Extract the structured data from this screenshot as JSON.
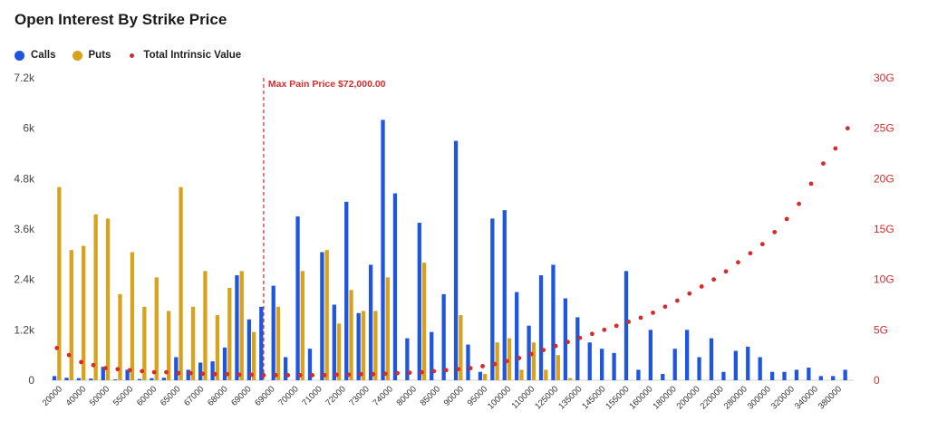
{
  "title": "Open Interest By Strike Price",
  "colors": {
    "calls": "#1f56e0",
    "puts": "#d9a21c",
    "intrinsic": "#d62b2b",
    "left_axis": "#444444",
    "right_axis": "#d62b2b"
  },
  "legend": {
    "calls": "Calls",
    "puts": "Puts",
    "intrinsic": "Total Intrinsic Value"
  },
  "annotation": {
    "label": "Max Pain Price $72,000.00",
    "strike_index": 17
  },
  "chart_data": {
    "type": "bar",
    "title": "Open Interest By Strike Price",
    "categories": [
      "20000",
      "30000",
      "40000",
      "45000",
      "50000",
      "52000",
      "55000",
      "58000",
      "60000",
      "62000",
      "65000",
      "66000",
      "67000",
      "68000",
      "68000",
      "68500",
      "69000",
      "69500",
      "70000",
      "70500",
      "71000",
      "71500",
      "72000",
      "72500",
      "73000",
      "73500",
      "74000",
      "75000",
      "78000",
      "80000",
      "83000",
      "85000",
      "88000",
      "90000",
      "92000",
      "95000",
      "98000",
      "100000",
      "105000",
      "110000",
      "115000",
      "120000",
      "125000",
      "130000",
      "135000",
      "140000",
      "145000",
      "150000",
      "155000",
      "160000",
      "170000",
      "180000",
      "190000",
      "200000",
      "210000",
      "220000",
      "250000",
      "280000",
      "290000",
      "300000",
      "310000",
      "320000",
      "330000",
      "340000",
      "360000",
      "380000"
    ],
    "x_tick_labels_shown": [
      "20000",
      "40000",
      "50000",
      "55000",
      "60000",
      "65000",
      "67000",
      "68000",
      "69000",
      "69000",
      "70000",
      "71000",
      "72000",
      "73000",
      "74000",
      "80000",
      "85000",
      "90000",
      "95000",
      "100000",
      "110000",
      "125000",
      "135000",
      "145000",
      "155000",
      "160000",
      "180000",
      "200000",
      "220000",
      "280000",
      "300000",
      "320000",
      "340000",
      "380000"
    ],
    "series": [
      {
        "name": "Calls",
        "axis": "left",
        "values": [
          100,
          60,
          50,
          40,
          320,
          20,
          250,
          30,
          50,
          60,
          550,
          250,
          420,
          450,
          780,
          2500,
          1450,
          1750,
          2250,
          550,
          3900,
          750,
          3050,
          1800,
          4250,
          1600,
          2750,
          6200,
          4450,
          1000,
          3750,
          1150,
          2050,
          5700,
          850,
          200,
          3850,
          4050,
          2100,
          1300,
          2500,
          2750,
          1950,
          1500,
          900,
          750,
          650,
          2600,
          250,
          1200,
          150,
          750,
          1200,
          550,
          1000,
          200,
          700,
          800,
          550,
          200,
          200,
          250,
          300,
          100,
          100,
          250
        ]
      },
      {
        "name": "Puts",
        "axis": "left",
        "values": [
          4600,
          3100,
          3200,
          3950,
          3850,
          2050,
          3050,
          1750,
          2450,
          1650,
          4600,
          1750,
          2600,
          1550,
          2200,
          2600,
          1150,
          0,
          1750,
          0,
          2600,
          0,
          3100,
          1350,
          2150,
          1650,
          1650,
          2450,
          0,
          0,
          2800,
          0,
          0,
          1550,
          0,
          150,
          900,
          1000,
          250,
          900,
          250,
          600,
          50,
          0,
          0,
          0,
          0,
          0,
          0,
          0,
          0,
          0,
          0,
          0,
          0,
          0,
          0,
          0,
          0,
          0,
          0,
          0,
          0,
          0,
          0,
          0
        ]
      },
      {
        "name": "Total Intrinsic Value",
        "axis": "right",
        "type": "scatter",
        "values": [
          3.2,
          2.5,
          1.8,
          1.5,
          1.2,
          1.1,
          1.0,
          0.9,
          0.8,
          0.8,
          0.7,
          0.7,
          0.65,
          0.6,
          0.6,
          0.55,
          0.55,
          0.5,
          0.5,
          0.5,
          0.5,
          0.5,
          0.5,
          0.55,
          0.55,
          0.6,
          0.6,
          0.65,
          0.7,
          0.75,
          0.8,
          0.9,
          1.0,
          1.1,
          1.2,
          1.4,
          1.6,
          1.9,
          2.2,
          2.6,
          3.0,
          3.4,
          3.8,
          4.2,
          4.6,
          5.0,
          5.4,
          5.8,
          6.2,
          6.7,
          7.3,
          7.9,
          8.6,
          9.3,
          10.0,
          10.8,
          11.7,
          12.6,
          13.5,
          14.7,
          16.0,
          17.5,
          19.5,
          21.5,
          23.0,
          25.0
        ]
      }
    ],
    "y_left": {
      "ticks": [
        "0",
        "1.2k",
        "2.4k",
        "3.6k",
        "4.8k",
        "6k",
        "7.2k"
      ],
      "ylim": [
        0,
        7200
      ]
    },
    "y_right": {
      "ticks": [
        "0",
        "5G",
        "10G",
        "15G",
        "20G",
        "25G",
        "30G"
      ],
      "ylim": [
        0,
        30
      ]
    },
    "grid": false,
    "legend_position": "top-left"
  }
}
